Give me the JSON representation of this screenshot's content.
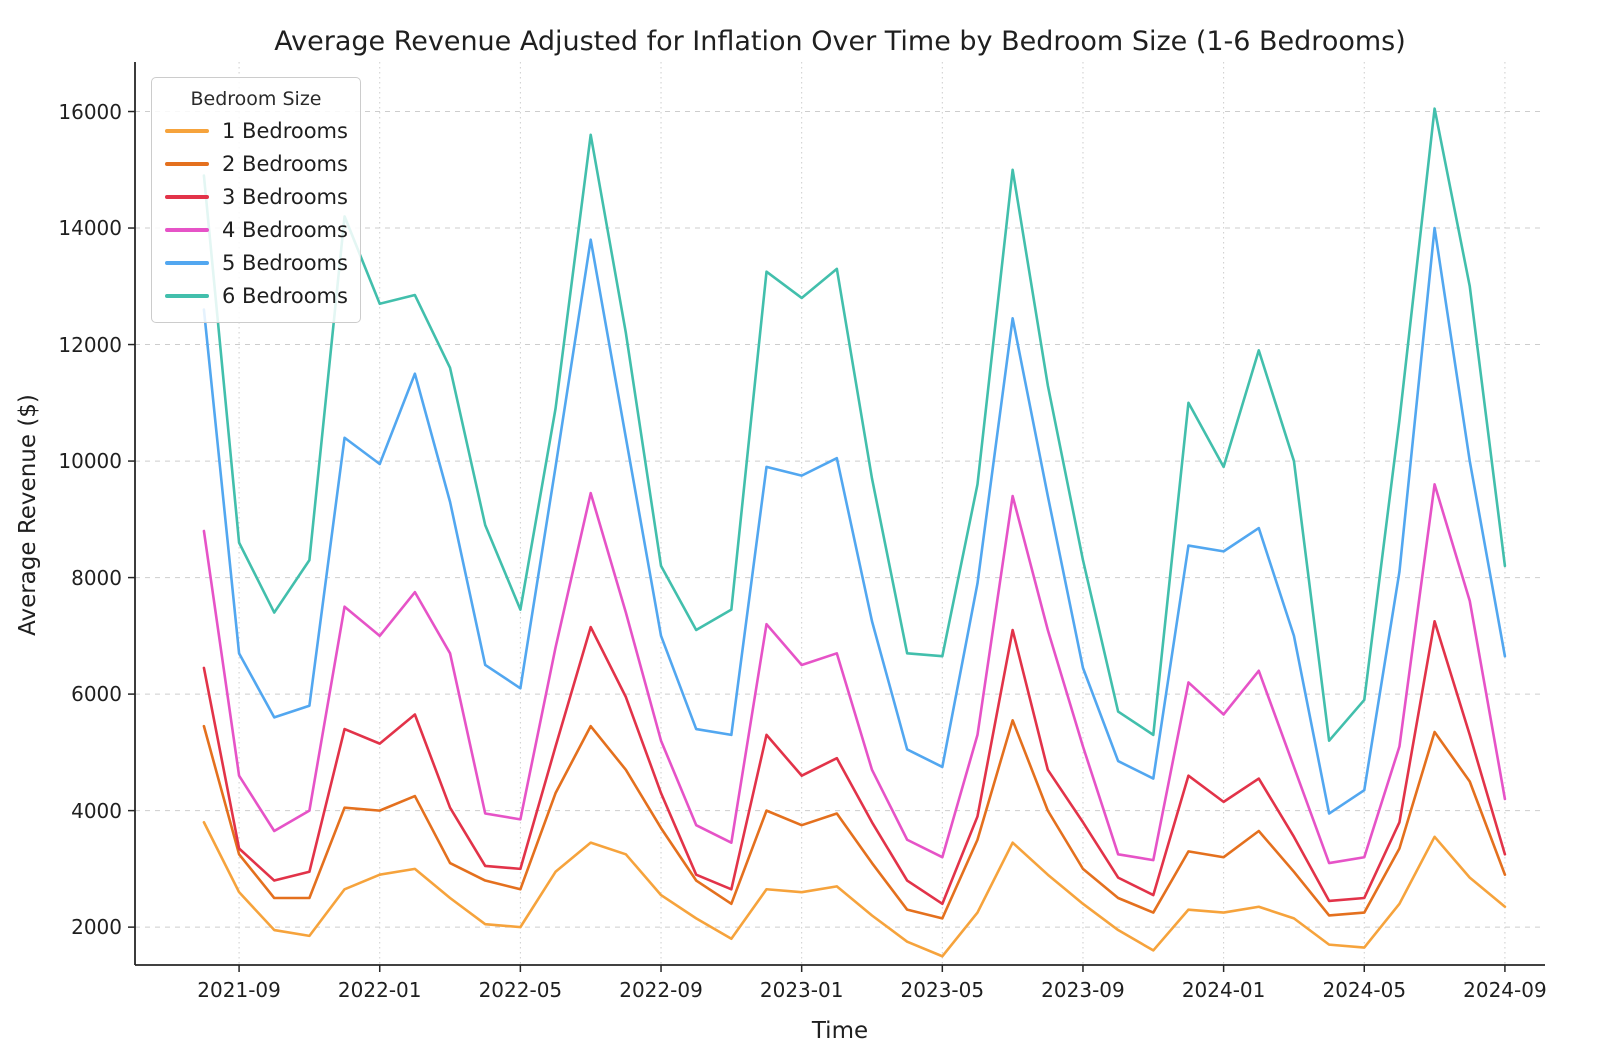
{
  "page": {
    "background": "#ffffff"
  },
  "chart_data": {
    "type": "line",
    "title": "Average Revenue Adjusted for Inflation Over Time by Bedroom Size (1-6 Bedrooms)",
    "xlabel": "Time",
    "ylabel": "Average Revenue ($)",
    "legend_title": "Bedroom Size",
    "legend_position": "upper left",
    "grid": true,
    "ylim": [
      1350,
      16850
    ],
    "ytick_values": [
      2000,
      4000,
      6000,
      8000,
      10000,
      12000,
      14000,
      16000
    ],
    "x": [
      "2021-08",
      "2021-09",
      "2021-10",
      "2021-11",
      "2021-12",
      "2022-01",
      "2022-02",
      "2022-03",
      "2022-04",
      "2022-05",
      "2022-06",
      "2022-07",
      "2022-08",
      "2022-09",
      "2022-10",
      "2022-11",
      "2022-12",
      "2023-01",
      "2023-02",
      "2023-03",
      "2023-04",
      "2023-05",
      "2023-06",
      "2023-07",
      "2023-08",
      "2023-09",
      "2023-10",
      "2023-11",
      "2023-12",
      "2024-01",
      "2024-02",
      "2024-03",
      "2024-04",
      "2024-05",
      "2024-06",
      "2024-07",
      "2024-08",
      "2024-09"
    ],
    "xtick_labels": [
      "2021-09",
      "2022-01",
      "2022-05",
      "2022-09",
      "2023-01",
      "2023-05",
      "2023-09",
      "2024-01",
      "2024-05",
      "2024-09"
    ],
    "series": [
      {
        "name": "1 Bedrooms",
        "color": "#F6A33C",
        "values": [
          3800,
          2600,
          1950,
          1850,
          2650,
          2900,
          3000,
          2500,
          2050,
          2000,
          2950,
          3450,
          3250,
          2550,
          2150,
          1800,
          2650,
          2600,
          2700,
          2200,
          1750,
          1500,
          2250,
          3450,
          2900,
          2400,
          1950,
          1600,
          2300,
          2250,
          2350,
          2150,
          1700,
          1650,
          2400,
          3550,
          2850,
          2350
        ]
      },
      {
        "name": "2 Bedrooms",
        "color": "#E4701E",
        "values": [
          5450,
          3250,
          2500,
          2500,
          4050,
          4000,
          4250,
          3100,
          2800,
          2650,
          4300,
          5450,
          4700,
          3700,
          2800,
          2400,
          4000,
          3750,
          3950,
          3100,
          2300,
          2150,
          3500,
          5550,
          4000,
          3000,
          2500,
          2250,
          3300,
          3200,
          3650,
          2950,
          2200,
          2250,
          3350,
          5350,
          4500,
          2900
        ]
      },
      {
        "name": "3 Bedrooms",
        "color": "#E23349",
        "values": [
          6450,
          3350,
          2800,
          2950,
          5400,
          5150,
          5650,
          4050,
          3050,
          3000,
          5100,
          7150,
          5950,
          4300,
          2900,
          2650,
          5300,
          4600,
          4900,
          3800,
          2800,
          2400,
          3900,
          7100,
          4700,
          3800,
          2850,
          2550,
          4600,
          4150,
          4550,
          3550,
          2450,
          2500,
          3800,
          7250,
          5300,
          3250
        ]
      },
      {
        "name": "4 Bedrooms",
        "color": "#E653C7",
        "values": [
          8800,
          4600,
          3650,
          4000,
          7500,
          7000,
          7750,
          6700,
          3950,
          3850,
          6800,
          9450,
          7400,
          5200,
          3750,
          3450,
          7200,
          6500,
          6700,
          4700,
          3500,
          3200,
          5300,
          9400,
          7100,
          5100,
          3250,
          3150,
          6200,
          5650,
          6400,
          4750,
          3100,
          3200,
          5100,
          9600,
          7600,
          4200
        ]
      },
      {
        "name": "5 Bedrooms",
        "color": "#52A7F0",
        "values": [
          12600,
          6700,
          5600,
          5800,
          10400,
          9950,
          11500,
          9300,
          6500,
          6100,
          9900,
          13800,
          10400,
          7000,
          5400,
          5300,
          9900,
          9750,
          10050,
          7250,
          5050,
          4750,
          7900,
          12450,
          9400,
          6450,
          4850,
          4550,
          8550,
          8450,
          8850,
          7000,
          3950,
          4350,
          8100,
          14000,
          10000,
          6650
        ]
      },
      {
        "name": "6 Bedrooms",
        "color": "#42BFAC",
        "values": [
          14900,
          8600,
          7400,
          8300,
          14200,
          12700,
          12850,
          11600,
          8900,
          7450,
          10900,
          15600,
          12200,
          8200,
          7100,
          7450,
          13250,
          12800,
          13300,
          9700,
          6700,
          6650,
          9600,
          15000,
          11300,
          8300,
          5700,
          5300,
          11000,
          9900,
          11900,
          10000,
          5200,
          5900,
          10700,
          16050,
          13000,
          8200
        ]
      }
    ]
  }
}
